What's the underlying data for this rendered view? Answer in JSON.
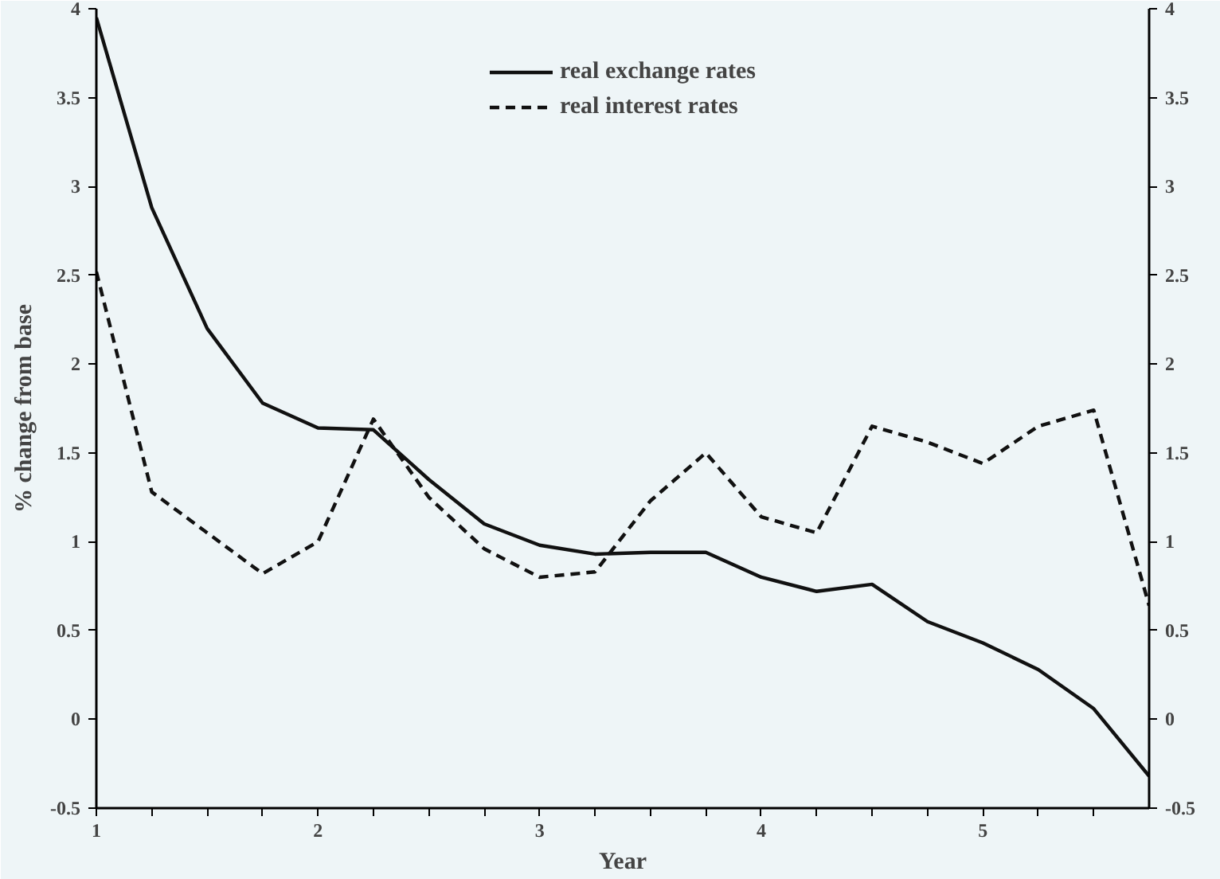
{
  "chart_data": {
    "type": "line",
    "xlabel": "Year",
    "ylabel": "% change from base",
    "x": [
      1,
      1.25,
      1.5,
      1.75,
      2,
      2.25,
      2.5,
      2.75,
      3,
      3.25,
      3.5,
      3.75,
      4,
      4.25,
      4.5,
      4.75,
      5,
      5.25,
      5.5,
      5.75
    ],
    "series": [
      {
        "name": "real exchange rates",
        "color": "#111111",
        "line_style": "solid",
        "values": [
          3.95,
          2.88,
          2.2,
          1.78,
          1.64,
          1.63,
          1.35,
          1.1,
          0.98,
          0.93,
          0.94,
          0.94,
          0.8,
          0.72,
          0.76,
          0.55,
          0.43,
          0.28,
          0.06,
          -0.32
        ]
      },
      {
        "name": "real interest rates",
        "color": "#111111",
        "line_style": "dashed",
        "values": [
          2.52,
          1.28,
          1.05,
          0.82,
          1.0,
          1.69,
          1.25,
          0.96,
          0.8,
          0.83,
          1.23,
          1.5,
          1.14,
          1.05,
          1.65,
          1.56,
          1.44,
          1.65,
          1.74,
          0.64
        ]
      }
    ],
    "xlim": [
      1,
      5.75
    ],
    "xticks": [
      1,
      {
        "value": 1.25,
        "label": null
      },
      {
        "value": 1.5,
        "label": null
      },
      {
        "value": 1.75,
        "label": null
      },
      2,
      {
        "value": 2.25,
        "label": null
      },
      {
        "value": 2.5,
        "label": null
      },
      {
        "value": 2.75,
        "label": null
      },
      3,
      {
        "value": 3.25,
        "label": null
      },
      {
        "value": 3.5,
        "label": null
      },
      {
        "value": 3.75,
        "label": null
      },
      4,
      {
        "value": 4.25,
        "label": null
      },
      {
        "value": 4.5,
        "label": null
      },
      {
        "value": 4.75,
        "label": null
      },
      5,
      {
        "value": 5.25,
        "label": null
      },
      {
        "value": 5.5,
        "label": null
      }
    ],
    "ylim": [
      -0.5,
      4
    ],
    "yticks": [
      -0.5,
      0,
      0.5,
      1,
      1.5,
      2,
      2.5,
      3,
      3.5,
      4
    ],
    "y2lim": [
      -0.5,
      4
    ],
    "y2ticks": [
      -0.5,
      0,
      0.5,
      1,
      1.5,
      2,
      2.5,
      3,
      3.5,
      4
    ],
    "legend": "top",
    "grid": false
  }
}
